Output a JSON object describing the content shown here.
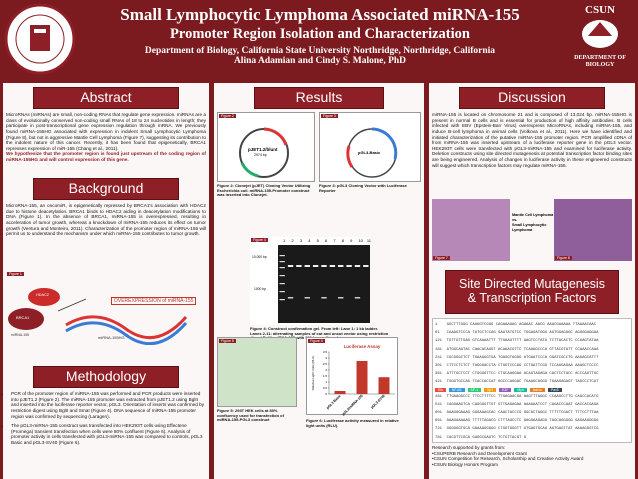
{
  "header": {
    "title": "Small Lymphocytic Lymphoma Associated miRNA-155",
    "subtitle": "Promoter Region Isolation and Characterization",
    "department": "Department of Biology, California State University Northridge, Northridge, California",
    "authors": "Alina Adamian and Cindy S. Malone, PhD",
    "logo_right_top": "CSUN",
    "logo_right_bottom": "DEPARTMENT OF BIOLOGY"
  },
  "abstract": {
    "heading": "Abstract",
    "text": "MicroRNAs (miRNAs) are small, non-coding RNAs that regulate gene expression. miRNAs are a class of evolutionally conserved non-coding small RNAs of 18 to 24 nucleotides in length; they participate in post-transcriptional gene expression regulation through mRNA. We previously found miRNA-155HG associated with expression in indolent Small Lymphocytic Lymphoma (Figure 8), but not in aggressive Mantle Cell Lymphoma (Figure 7), suggesting its contribution to the indolent nature of this cancer. Recently, it has been found that epigenetically, BRCA1 represses expression of miR-155 (Chang et al., 2011).",
    "hypothesis": "We hypothesize that the promoter region is found just upstream of the coding region of miRNA-155HG and will control expression of this gene."
  },
  "background": {
    "heading": "Background",
    "text": "MicroRNA-155, an oncomiR, is epigenetically repressed by BRCA1's association with HDAC2 due to histone deacetylation. BRCA1 binds to HDAC2 aiding in deacetylation modifications to DNA (Figure 1). In the absence of BRCA1, miRNA-155 is overexpressed, resulting in acceleration of tumor growth, whereas a knockdown of miRNA-155 reduces its effect on tumor growth (Ventura and Monteiro, 2011). Characterization of the promoter region of miRNA-155 will permit us to understand the mechanism under which miRNA-155 contributes to tumor growth.",
    "figure_label": "Figure 1",
    "hdac2": "HDAC2",
    "brca1": "BRCA1",
    "mirna": "miRNA-155",
    "overexpression": "OVEREXPRESSION of miRNA-155",
    "gene": "miRNA-155HG"
  },
  "methodology": {
    "heading": "Methodology",
    "bullets": [
      "PCR of the promoter region of miRNA-155 was performed and PCR products were inserted into pJET1.2 (Figure 2). The miRNA-155 promoter was extracted from pJET1.2 using BglII and inserted into the luciferase reporter vector, pGL3. Orientation of inserts was confirmed by restriction digest using BglII and SmaI (Figure 4). DNA sequence of miRNA-155 promoter region was confirmed by sequencing (Laragen).",
      "The pGL3-miRNA-155 construct was transfected into HEK293T cells using Effectene (Promega) transient transfection when cells were 80% confluent (Figure 6). Analysis of promoter activity in cells transfected with pGL3-miRNA-155 was compared to controls, pGL3 Basic and pGL3-SV40 (Figure 6)."
    ]
  },
  "results": {
    "heading": "Results",
    "fig2": {
      "label": "Figure 2",
      "plasmid": "pJET1.2/blunt",
      "size": "2974 bp",
      "caption": "Figure 2: Clonejet (pJET) Cloning Vector Utilizing Escherichia coli. miRNA-155-Promoter construct was inserted into Clonejet."
    },
    "fig3": {
      "label": "Figure 3",
      "plasmid": "pGL3-Basic",
      "caption": "Figure 3: pGL3 Cloning Vector with Luciferase Reporter"
    },
    "fig4": {
      "label": "Figure 4",
      "lanes": [
        "1",
        "2",
        "3",
        "4",
        "5",
        "6",
        "7",
        "8",
        "9",
        "10",
        "11"
      ],
      "marker_high": "10,000 bp",
      "marker_low": "1000 bp",
      "caption": "Figure 4: Construct confirmation gel. From left: Lane 1: 1 kb ladder. Lanes 2-11: alternating samples of cut and uncut vector using restriction digest BglII. miRNA-155 with 911 bp confirmed."
    },
    "fig5": {
      "label": "Figure 5",
      "caption": "Figure 5: 293T HEK cells at 80% confluency used for transfection of miRNA-155-PGL3 construct"
    },
    "fig6": {
      "label": "Figure 6",
      "caption": "Figure 6: Luciferase activity measured in relative light units (RLU)."
    }
  },
  "chart_data": {
    "type": "bar",
    "title": "Luciferase Assay",
    "y_label": "Relative Light Units (RLU)",
    "categories": [
      "pGL3 Basic",
      "pGL3/miRNA-155",
      "pGL3-SV40"
    ],
    "values": [
      0.25,
      2.75,
      1.4
    ],
    "color": "#c0392b",
    "ylim": [
      0,
      3.5
    ],
    "yticks": [
      0,
      0.5,
      1,
      1.5,
      2,
      2.5,
      3,
      3.5
    ],
    "grid": false
  },
  "discussion": {
    "heading": "Discussion",
    "text": "miRNA-155 is located on chromosome 21 and is composed of 13,024 bp. miRNA-155HG is present in normal B cells and is essential for production of high affinity antibodies. B cells infected with EBV (Epstein-Barr Virus) overexpress MicroRNAs, including miRNA-155, and induce B-cell lymphoma in animal cells (Volkova et al., 2011). Here we have identified and initiated characterization of the putative miRNA-155 promoter region. PCR amplified cDNA of from miRNA-155 was inserted upstream of a luciferase reporter gene in the pGL3 vector. HEK293T cells were transfected with pGL3-miRNA-155 and examined for luciferase activity. Deletion constructs using site directed mutagenesis at potential transcription factor binding sites are being engineered. Analysis of changes in luciferase activity in these engineered constructs will suggest which transcription factors may regulate miRNA-155.",
    "img_label_a": "Mantle Cell Lymphoma",
    "img_label_vs": "vs.",
    "img_label_b": "Small Lymphocytic Lymphoma",
    "fig7": "Figure 7",
    "fig8": "Figure 8"
  },
  "mutagenesis": {
    "heading_1": "Site Directed Mutagenesis",
    "heading_2": "& Transcription Factors",
    "lines": [
      "1    GGCTTTGGG CAAGGTCGGG CAGAAAGAG AGAAAC AACG AAACGAAAAA TTAAAACAAC",
      "61   CAAAGTCCCA TATGCTCCAG GAATATGTCC TGGAGATGGG AGTGGAGGGC AGGGGAGGAA",
      "121  TGTTGTTGAG GTCAAAATTT TTGAAGTTTT AAGTCCTATA TCTTACACTC CCGAGTATAA",
      "181  ATGGCAGTAC CAACACAGGT ACAAACGTTC TCAAAGCCCA GTTACGTATT CCAAACCAAA",
      "241  CGCGGGCTCT TGAAGGGTGA TGAGGTAGGG ATGAATCCCA GGATCGCCTG AAGAGCATTT",
      "301  CTTCCTCTCT TAGGGACCTA CTGGTCCCAG CCTGATTCGG TCCAGGAGAA AAAGCTCCCC",
      "361  ATTTGCTCCT CTGGGGTTCC CTGCAAGGAA ACAGTAGAGA CACTCCTACC ACCCAGTTGC",
      "421  TGGGTGCCAG TCACCACCAT GGCCCAGGAC TGAAGCAGGG TGAAGAGAGT TAGCCCTCAT",
      "481  TTGAAGGCCC TTCCTTTTCC TTGAGAACGA AAGTTTAGGC CCAAGCCTTG CAGCCACATG",
      "541  CAGGAAGTCA CAGGGGTTGT GTTGAGAGAA AAAAAATCCT CAGACCCAAT GACCACGAGA",
      "601  AAAGGGAAAG GGGAAAGCAC CAACTACCCG GGCGCTAGGC TTTTTCGACT TTTCCTTTAA",
      "661  AAAGAAAAAG TTTTTAGACG CTTTAGCCTC GAGGAAGAGG TAGCAGGGGG GAGAAGGGGG",
      "721  GGGGGGTGCA GAAAAGGGGG CTGGTGGGTT ATGAGTGCAG AGTGAGTTAT AAAAGGGTCG",
      "781  CACGTTCGCA GAGGCGAGTC TCTGTTACGT G"
    ],
    "factors": [
      "Ets",
      "NF-kB",
      "AP-1",
      "Sp1",
      "E2F",
      "Myb",
      "Ikaros",
      "Pax5"
    ]
  },
  "support": {
    "heading": "Research supported by grants from:",
    "items": [
      "•CSUPERB Research and Development Grant",
      "•CSUN Competition for Research, Scholarship and Creative Activity Award",
      "•CSUN Biology Honors Program"
    ]
  }
}
